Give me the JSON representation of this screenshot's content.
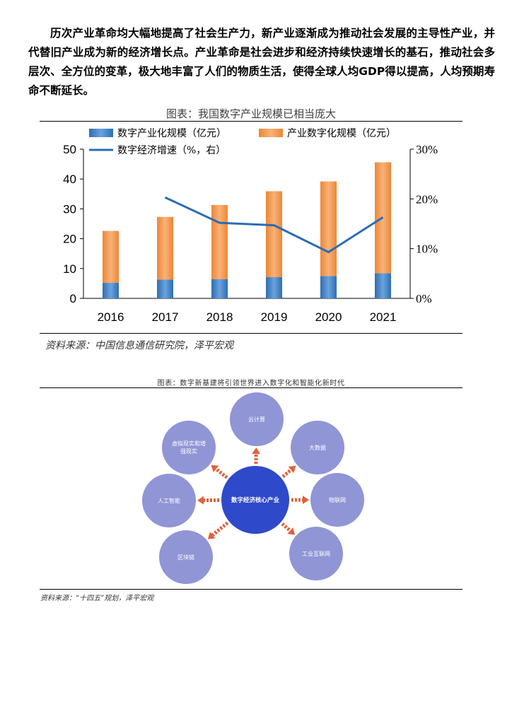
{
  "paragraph": "历次产业革命均大幅地提高了社会生产力，新产业逐渐成为推动社会发展的主导性产业，并代替旧产业成为新的经济增长点。产业革命是社会进步和经济持续快速增长的基石，推动社会多层次、全方位的变革，极大地丰富了人们的物质生活，使得全球人均GDP得以提高，人均预期寿命不断延长。",
  "figure1": {
    "title": "图表：我国数字产业规模已相当庞大",
    "source": "资料来源：中国信息通信研究院，泽平宏观"
  },
  "chart_data": {
    "type": "bar",
    "stacked": true,
    "categories": [
      "2016",
      "2017",
      "2018",
      "2019",
      "2020",
      "2021"
    ],
    "series": [
      {
        "name": "数字产业化规模（亿元）",
        "type": "bar",
        "axis": "left",
        "color": "#4a86c8",
        "values": [
          5.2,
          6.3,
          6.4,
          7.1,
          7.5,
          8.4
        ]
      },
      {
        "name": "产业数字化规模（亿元）",
        "type": "bar",
        "axis": "left",
        "color": "#f39a4f",
        "values": [
          17.4,
          21.0,
          24.9,
          28.8,
          31.7,
          37.2
        ]
      },
      {
        "name": "数字经济增速（%，右）",
        "type": "line",
        "axis": "right",
        "color": "#2a6cb5",
        "values": [
          null,
          20.3,
          15.2,
          14.7,
          9.3,
          16.3
        ]
      }
    ],
    "y_left": {
      "min": 0,
      "max": 50,
      "ticks": [
        "0",
        "10",
        "20",
        "30",
        "40",
        "50"
      ]
    },
    "y_right": {
      "min": 0,
      "max": 30,
      "ticks": [
        "0%",
        "10%",
        "20%",
        "30%"
      ]
    },
    "legend_position": "top"
  },
  "figure2": {
    "title": "图表：数字新基建将引领世界进入数字化和智能化新时代",
    "center": "数字经济核心产业",
    "nodes": [
      "云计算",
      "大数据",
      "物联网",
      "工业互联网",
      "区块链",
      "人工智能",
      "虚拟现实和增强现实"
    ],
    "source": "资料来源：“十四五”规划，泽平宏观",
    "colors": {
      "center": "#2e49c9",
      "nodes": "#9095d6",
      "arrows": "#e0623a"
    }
  }
}
